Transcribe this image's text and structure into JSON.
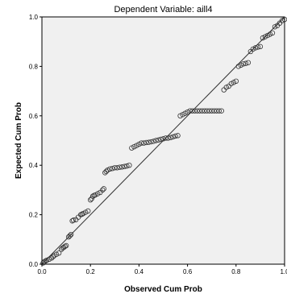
{
  "chart_data": {
    "type": "scatter",
    "title": "Dependent Variable: aill4",
    "xlabel": "Observed Cum Prob",
    "ylabel": "Expected Cum Prob",
    "xlim": [
      0,
      1
    ],
    "ylim": [
      0,
      1
    ],
    "x_ticks": [
      "0.0",
      "0.2",
      "0.4",
      "0.6",
      "0.8",
      "1.0"
    ],
    "y_ticks": [
      "0.0",
      "0.2",
      "0.4",
      "0.6",
      "0.8",
      "1.0"
    ],
    "grid": false,
    "reference_line": [
      [
        0,
        0
      ],
      [
        1,
        1
      ]
    ],
    "colors": {
      "plot_bg": "#f0f0f0",
      "marker": "#333333",
      "line": "#333333"
    },
    "points": [
      [
        0.005,
        0.005
      ],
      [
        0.01,
        0.01
      ],
      [
        0.015,
        0.013
      ],
      [
        0.02,
        0.016
      ],
      [
        0.03,
        0.02
      ],
      [
        0.04,
        0.025
      ],
      [
        0.045,
        0.03
      ],
      [
        0.05,
        0.034
      ],
      [
        0.06,
        0.04
      ],
      [
        0.07,
        0.045
      ],
      [
        0.08,
        0.06
      ],
      [
        0.085,
        0.065
      ],
      [
        0.09,
        0.068
      ],
      [
        0.095,
        0.072
      ],
      [
        0.1,
        0.075
      ],
      [
        0.11,
        0.11
      ],
      [
        0.115,
        0.115
      ],
      [
        0.12,
        0.12
      ],
      [
        0.125,
        0.175
      ],
      [
        0.13,
        0.178
      ],
      [
        0.14,
        0.18
      ],
      [
        0.15,
        0.19
      ],
      [
        0.16,
        0.2
      ],
      [
        0.165,
        0.202
      ],
      [
        0.17,
        0.205
      ],
      [
        0.18,
        0.21
      ],
      [
        0.19,
        0.215
      ],
      [
        0.2,
        0.26
      ],
      [
        0.205,
        0.265
      ],
      [
        0.21,
        0.275
      ],
      [
        0.215,
        0.278
      ],
      [
        0.22,
        0.28
      ],
      [
        0.23,
        0.285
      ],
      [
        0.24,
        0.29
      ],
      [
        0.25,
        0.3
      ],
      [
        0.255,
        0.305
      ],
      [
        0.26,
        0.37
      ],
      [
        0.265,
        0.375
      ],
      [
        0.27,
        0.38
      ],
      [
        0.28,
        0.385
      ],
      [
        0.29,
        0.387
      ],
      [
        0.3,
        0.39
      ],
      [
        0.31,
        0.39
      ],
      [
        0.32,
        0.392
      ],
      [
        0.33,
        0.393
      ],
      [
        0.34,
        0.395
      ],
      [
        0.35,
        0.397
      ],
      [
        0.36,
        0.4
      ],
      [
        0.37,
        0.47
      ],
      [
        0.38,
        0.475
      ],
      [
        0.39,
        0.48
      ],
      [
        0.4,
        0.485
      ],
      [
        0.41,
        0.49
      ],
      [
        0.42,
        0.49
      ],
      [
        0.43,
        0.492
      ],
      [
        0.44,
        0.493
      ],
      [
        0.45,
        0.495
      ],
      [
        0.46,
        0.497
      ],
      [
        0.47,
        0.5
      ],
      [
        0.48,
        0.502
      ],
      [
        0.49,
        0.505
      ],
      [
        0.5,
        0.507
      ],
      [
        0.51,
        0.51
      ],
      [
        0.52,
        0.51
      ],
      [
        0.53,
        0.512
      ],
      [
        0.54,
        0.515
      ],
      [
        0.55,
        0.518
      ],
      [
        0.56,
        0.52
      ],
      [
        0.57,
        0.6
      ],
      [
        0.58,
        0.605
      ],
      [
        0.59,
        0.61
      ],
      [
        0.6,
        0.615
      ],
      [
        0.61,
        0.62
      ],
      [
        0.62,
        0.62
      ],
      [
        0.63,
        0.62
      ],
      [
        0.64,
        0.62
      ],
      [
        0.65,
        0.62
      ],
      [
        0.66,
        0.62
      ],
      [
        0.67,
        0.62
      ],
      [
        0.68,
        0.62
      ],
      [
        0.69,
        0.62
      ],
      [
        0.7,
        0.62
      ],
      [
        0.71,
        0.62
      ],
      [
        0.72,
        0.62
      ],
      [
        0.73,
        0.62
      ],
      [
        0.74,
        0.62
      ],
      [
        0.75,
        0.705
      ],
      [
        0.76,
        0.715
      ],
      [
        0.77,
        0.72
      ],
      [
        0.78,
        0.73
      ],
      [
        0.79,
        0.735
      ],
      [
        0.8,
        0.74
      ],
      [
        0.81,
        0.8
      ],
      [
        0.82,
        0.805
      ],
      [
        0.83,
        0.81
      ],
      [
        0.84,
        0.812
      ],
      [
        0.85,
        0.815
      ],
      [
        0.86,
        0.86
      ],
      [
        0.87,
        0.87
      ],
      [
        0.88,
        0.875
      ],
      [
        0.89,
        0.878
      ],
      [
        0.9,
        0.88
      ],
      [
        0.91,
        0.915
      ],
      [
        0.92,
        0.92
      ],
      [
        0.93,
        0.925
      ],
      [
        0.94,
        0.93
      ],
      [
        0.95,
        0.935
      ],
      [
        0.96,
        0.96
      ],
      [
        0.97,
        0.965
      ],
      [
        0.98,
        0.975
      ],
      [
        0.99,
        0.985
      ],
      [
        1.0,
        0.99
      ]
    ]
  }
}
